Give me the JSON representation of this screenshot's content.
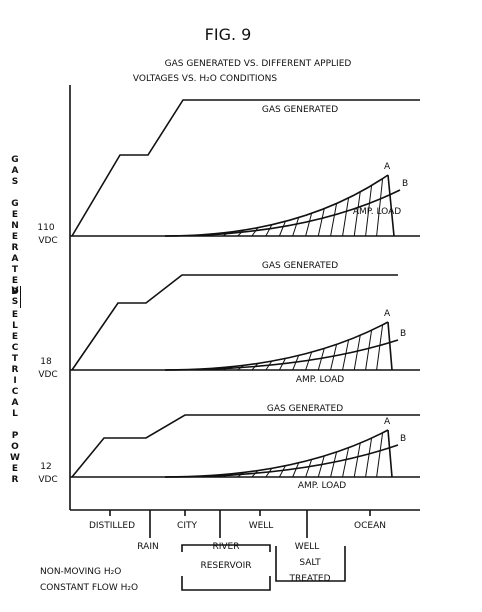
{
  "figure": {
    "label": "FIG. 9",
    "title": [
      "GAS GENERATED VS. DIFFERENT APPLIED",
      "VOLTAGES VS. H₂O CONDITIONS"
    ]
  },
  "y_label": [
    "GAS GENERATED",
    "VS",
    "ELECTRICAL POWER"
  ],
  "panels": [
    {
      "voltage": [
        "110",
        "VDC"
      ],
      "gas": "GAS GENERATED",
      "a": "A",
      "b": "B",
      "load": "AMP. LOAD"
    },
    {
      "voltage": [
        "18",
        "VDC"
      ],
      "gas": "GAS GENERATED",
      "a": "A",
      "b": "B",
      "load": "AMP. LOAD"
    },
    {
      "voltage": [
        "12",
        "VDC"
      ],
      "gas": "GAS GENERATED",
      "a": "A",
      "b": "B",
      "load": "AMP. LOAD"
    }
  ],
  "x_labels": {
    "distilled": "DISTILLED",
    "rain": "RAIN",
    "city": "CITY",
    "river": "RIVER",
    "reservoir": "RESERVOIR",
    "well": "WELL",
    "well_group": [
      "WELL",
      "SALT",
      "TREATED"
    ],
    "ocean": "OCEAN"
  },
  "footer": [
    "NON-MOVING H₂O",
    "CONSTANT FLOW H₂O"
  ]
}
